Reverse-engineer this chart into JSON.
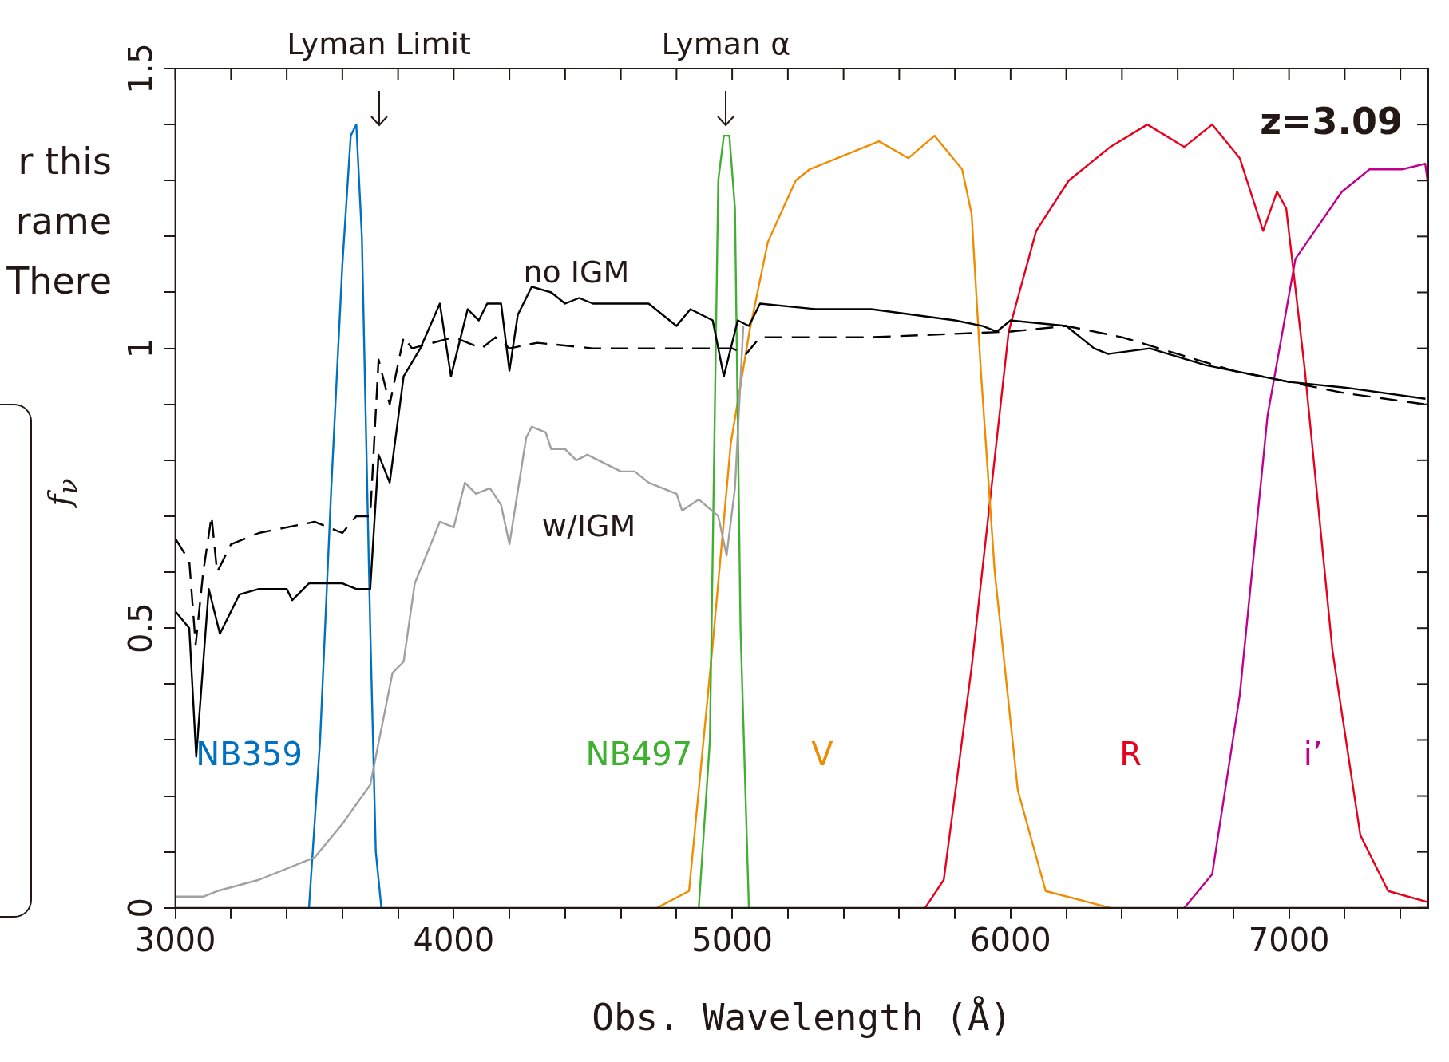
{
  "chart_data": {
    "type": "line",
    "xlabel": "Obs. Wavelength (Å)",
    "ylabel": "f$_{ν}$",
    "xlim": [
      3000,
      7500
    ],
    "ylim": [
      0,
      1.5
    ],
    "xticks": [
      3000,
      {
        "value": 3200,
        "label": null
      },
      {
        "value": 3400,
        "label": null
      },
      {
        "value": 3600,
        "label": null
      },
      {
        "value": 3800,
        "label": null
      },
      4000,
      {
        "value": 4200,
        "label": null
      },
      {
        "value": 4400,
        "label": null
      },
      {
        "value": 4600,
        "label": null
      },
      {
        "value": 4800,
        "label": null
      },
      5000,
      {
        "value": 5200,
        "label": null
      },
      {
        "value": 5400,
        "label": null
      },
      {
        "value": 5600,
        "label": null
      },
      {
        "value": 5800,
        "label": null
      },
      6000,
      {
        "value": 6200,
        "label": null
      },
      {
        "value": 6400,
        "label": null
      },
      {
        "value": 6600,
        "label": null
      },
      {
        "value": 6800,
        "label": null
      },
      7000,
      {
        "value": 7200,
        "label": null
      },
      {
        "value": 7400,
        "label": null
      }
    ],
    "yticks": [
      0,
      {
        "value": 0.1,
        "label": null
      },
      {
        "value": 0.2,
        "label": null
      },
      {
        "value": 0.3,
        "label": null
      },
      {
        "value": 0.4,
        "label": null
      },
      0.5,
      {
        "value": 0.6,
        "label": null
      },
      {
        "value": 0.7,
        "label": null
      },
      {
        "value": 0.8,
        "label": null
      },
      {
        "value": 0.9,
        "label": null
      },
      1,
      {
        "value": 1.1,
        "label": null
      },
      {
        "value": 1.2,
        "label": null
      },
      {
        "value": 1.3,
        "label": null
      },
      {
        "value": 1.4,
        "label": null
      },
      1.5
    ],
    "grid": false,
    "legend": false,
    "series": [
      {
        "color": "#000000",
        "line_style": "dashed",
        "x": [
          3000,
          3050,
          3073,
          3100,
          3130,
          3150,
          3200,
          3300,
          3500,
          3600,
          3650,
          3700,
          3730,
          3770,
          3820,
          3850,
          4000,
          4100,
          4150,
          4200,
          4300,
          4500,
          4700,
          4900,
          5000,
          5050,
          5100,
          5500,
          6000,
          6200,
          6400,
          6600,
          6800,
          7000,
          7200,
          7490
        ],
        "values": [
          0.66,
          0.62,
          0.47,
          0.6,
          0.7,
          0.6,
          0.65,
          0.67,
          0.69,
          0.67,
          0.7,
          0.7,
          0.98,
          0.9,
          1.02,
          1.0,
          1.02,
          1.0,
          1.02,
          1.0,
          1.01,
          1.0,
          1.0,
          1.0,
          1.0,
          0.99,
          1.02,
          1.02,
          1.03,
          1.04,
          1.02,
          0.99,
          0.96,
          0.94,
          0.92,
          0.9
        ]
      },
      {
        "color": "#000000",
        "line_style": "solid",
        "x": [
          3000,
          3050,
          3075,
          3120,
          3160,
          3230,
          3300,
          3400,
          3420,
          3480,
          3600,
          3650,
          3700,
          3730,
          3770,
          3820,
          3880,
          3950,
          3990,
          4050,
          4090,
          4120,
          4170,
          4200,
          4230,
          4280,
          4350,
          4400,
          4450,
          4500,
          4700,
          4800,
          4850,
          4930,
          4970,
          5020,
          5060,
          5100,
          5300,
          5500,
          5800,
          5900,
          5950,
          6000,
          6200,
          6300,
          6350,
          6500,
          6700,
          7000,
          7200,
          7490
        ],
        "values": [
          0.53,
          0.5,
          0.27,
          0.57,
          0.49,
          0.56,
          0.57,
          0.57,
          0.55,
          0.58,
          0.58,
          0.57,
          0.57,
          0.81,
          0.76,
          0.95,
          1.0,
          1.08,
          0.95,
          1.07,
          1.05,
          1.08,
          1.08,
          0.96,
          1.06,
          1.11,
          1.1,
          1.08,
          1.09,
          1.08,
          1.08,
          1.04,
          1.07,
          1.05,
          0.95,
          1.05,
          1.04,
          1.08,
          1.07,
          1.07,
          1.05,
          1.04,
          1.03,
          1.05,
          1.04,
          1.0,
          0.99,
          1.0,
          0.97,
          0.94,
          0.93,
          0.91
        ]
      },
      {
        "color": "#a0a0a0",
        "line_style": "solid",
        "x": [
          3000,
          3050,
          3100,
          3150,
          3300,
          3500,
          3600,
          3700,
          3780,
          3820,
          3860,
          3950,
          4000,
          4040,
          4080,
          4130,
          4170,
          4200,
          4260,
          4280,
          4330,
          4350,
          4400,
          4440,
          4480,
          4560,
          4600,
          4650,
          4700,
          4800,
          4820,
          4880,
          4950,
          4980,
          5010,
          5040
        ],
        "values": [
          0.02,
          0.02,
          0.02,
          0.03,
          0.05,
          0.09,
          0.15,
          0.22,
          0.42,
          0.44,
          0.58,
          0.69,
          0.68,
          0.76,
          0.74,
          0.75,
          0.72,
          0.65,
          0.84,
          0.86,
          0.85,
          0.82,
          0.82,
          0.8,
          0.81,
          0.79,
          0.78,
          0.78,
          0.76,
          0.74,
          0.71,
          0.73,
          0.7,
          0.63,
          0.75,
          1.04
        ]
      },
      {
        "name": "NB359",
        "color": "#0070c0",
        "line_style": "solid",
        "x": [
          3480,
          3520,
          3560,
          3600,
          3630,
          3650,
          3670,
          3700,
          3720,
          3740
        ],
        "values": [
          0,
          0.3,
          0.75,
          1.15,
          1.38,
          1.4,
          1.2,
          0.5,
          0.1,
          0
        ]
      },
      {
        "name": "NB497",
        "color": "#40b030",
        "line_style": "solid",
        "x": [
          4880,
          4920,
          4950,
          4970,
          4990,
          5010,
          5030,
          5060
        ],
        "values": [
          0,
          0.3,
          1.3,
          1.38,
          1.38,
          1.25,
          0.5,
          0
        ]
      },
      {
        "name": "V",
        "color": "#f08c00",
        "line_style": "solid",
        "x": [
          4730,
          4845,
          4928,
          4995,
          5062,
          5128,
          5228,
          5278,
          5527,
          5633,
          5727,
          5826,
          5860,
          5893,
          5943,
          6026,
          6126,
          6358
        ],
        "values": [
          0,
          0.03,
          0.46,
          0.83,
          1.03,
          1.19,
          1.3,
          1.32,
          1.37,
          1.34,
          1.38,
          1.32,
          1.24,
          0.96,
          0.6,
          0.21,
          0.03,
          0
        ]
      },
      {
        "name": "R",
        "color": "#e8001c",
        "line_style": "solid",
        "x": [
          5693,
          5760,
          5860,
          5993,
          6092,
          6209,
          6358,
          6491,
          6624,
          6724,
          6823,
          6907,
          6957,
          6990,
          7057,
          7156,
          7256,
          7356,
          7500
        ],
        "values": [
          0,
          0.05,
          0.43,
          1.03,
          1.21,
          1.3,
          1.36,
          1.4,
          1.36,
          1.4,
          1.34,
          1.21,
          1.28,
          1.25,
          0.96,
          0.46,
          0.13,
          0.03,
          0.01
        ]
      },
      {
        "name": "i’",
        "color": "#c0008c",
        "line_style": "solid",
        "x": [
          6624,
          6724,
          6823,
          6923,
          7023,
          7190,
          7289,
          7406,
          7489,
          7500
        ],
        "values": [
          0,
          0.06,
          0.38,
          0.88,
          1.16,
          1.28,
          1.32,
          1.32,
          1.33,
          1.29
        ]
      }
    ],
    "annotations": [
      {
        "text": "Lyman Limit",
        "x": 3731
      },
      {
        "text": "Lyman α",
        "x": 4978
      },
      "z=3.09",
      "no IGM",
      "w/IGM",
      "r this",
      "rame",
      "There"
    ]
  }
}
